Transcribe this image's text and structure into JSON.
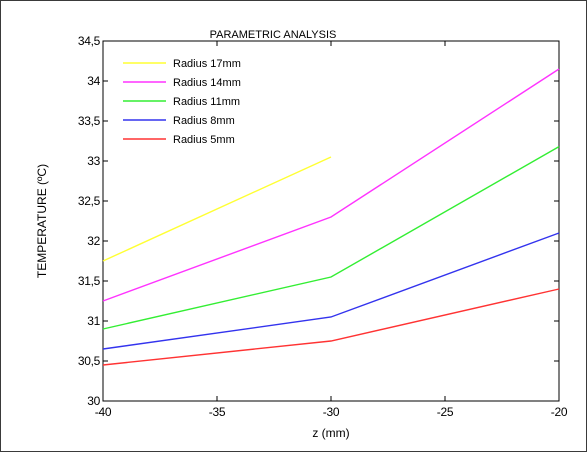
{
  "chart_data": {
    "type": "line",
    "title": "PARAMETRIC  ANALYSIS",
    "xlabel": "z (mm)",
    "ylabel": "TEMPERATURE (ºC)",
    "xlim": [
      -40,
      -20
    ],
    "ylim": [
      30,
      34.5
    ],
    "x_ticks": [
      -40,
      -35,
      -30,
      -25,
      -20
    ],
    "x_tick_labels": [
      "-40",
      "-35",
      "-30",
      "-25",
      "-20"
    ],
    "y_ticks": [
      30,
      30.5,
      31,
      31.5,
      32,
      32.5,
      33,
      33.5,
      34,
      34.5
    ],
    "y_tick_labels": [
      "30",
      "30,5",
      "31",
      "31,5",
      "32",
      "32,5",
      "33",
      "33,5",
      "34",
      "34,5"
    ],
    "grid": false,
    "legend_position": "top-left",
    "series": [
      {
        "name": "Radius 17mm",
        "color": "#ffff33",
        "x": [
          -40,
          -30
        ],
        "y": [
          31.75,
          33.05
        ]
      },
      {
        "name": "Radius 14mm",
        "color": "#ff33ff",
        "x": [
          -40,
          -30,
          -20
        ],
        "y": [
          31.25,
          32.3,
          34.15
        ]
      },
      {
        "name": "Radius 11mm",
        "color": "#33ee33",
        "x": [
          -40,
          -30,
          -20
        ],
        "y": [
          30.9,
          31.55,
          33.18
        ]
      },
      {
        "name": "Radius 8mm",
        "color": "#3333ee",
        "x": [
          -40,
          -30,
          -20
        ],
        "y": [
          30.65,
          31.05,
          32.1
        ]
      },
      {
        "name": "Radius 5mm",
        "color": "#ff3333",
        "x": [
          -40,
          -30,
          -20
        ],
        "y": [
          30.45,
          30.75,
          31.4
        ]
      }
    ]
  }
}
